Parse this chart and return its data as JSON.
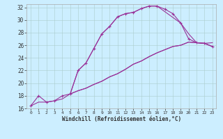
{
  "xlabel": "Windchill (Refroidissement éolien,°C)",
  "bg_color": "#cceeff",
  "line_color": "#993399",
  "xlim": [
    -0.5,
    23.5
  ],
  "ylim": [
    16,
    32.5
  ],
  "xticks": [
    0,
    1,
    2,
    3,
    4,
    5,
    6,
    7,
    8,
    9,
    10,
    11,
    12,
    13,
    14,
    15,
    16,
    17,
    18,
    19,
    20,
    21,
    22,
    23
  ],
  "yticks": [
    16,
    18,
    20,
    22,
    24,
    26,
    28,
    30,
    32
  ],
  "line1_x": [
    0,
    1,
    2,
    3,
    4,
    5,
    6,
    7,
    8,
    9,
    10,
    11,
    12,
    13,
    14,
    15,
    16,
    17,
    18,
    19,
    20,
    21,
    22,
    23
  ],
  "line1_y": [
    16.4,
    18.0,
    17.0,
    17.2,
    18.0,
    18.3,
    22.0,
    23.2,
    25.5,
    27.8,
    29.0,
    30.5,
    31.0,
    31.2,
    31.8,
    32.2,
    32.2,
    31.7,
    31.0,
    29.5,
    27.0,
    26.4,
    26.3,
    25.8
  ],
  "line2_x": [
    5,
    6,
    7,
    8,
    9,
    10,
    11,
    12,
    13,
    14,
    15,
    16,
    19,
    20,
    21,
    22,
    23
  ],
  "line2_y": [
    18.3,
    22.0,
    23.2,
    25.5,
    27.8,
    29.0,
    30.5,
    31.0,
    31.2,
    31.8,
    32.2,
    32.2,
    29.5,
    27.8,
    26.4,
    26.3,
    26.4
  ],
  "line3_x": [
    5,
    6,
    7,
    8,
    9,
    10,
    11,
    12,
    13,
    14,
    15,
    16,
    17,
    18,
    19,
    20,
    21,
    22,
    23
  ],
  "line3_y": [
    18.3,
    18.8,
    19.2,
    19.8,
    20.3,
    21.0,
    21.5,
    22.2,
    23.0,
    23.5,
    24.2,
    24.8,
    25.3,
    25.8,
    26.0,
    26.5,
    26.4,
    26.3,
    25.8
  ],
  "line4_x": [
    0,
    1,
    2,
    3,
    4,
    5,
    6,
    7,
    8,
    9,
    10,
    11,
    12,
    13,
    14,
    15,
    16,
    17,
    18,
    19,
    20,
    21,
    22,
    23
  ],
  "line4_y": [
    16.4,
    17.0,
    17.0,
    17.2,
    17.5,
    18.3,
    18.8,
    19.2,
    19.8,
    20.3,
    21.0,
    21.5,
    22.2,
    23.0,
    23.5,
    24.2,
    24.8,
    25.3,
    25.8,
    26.0,
    26.5,
    26.4,
    26.3,
    25.8
  ]
}
